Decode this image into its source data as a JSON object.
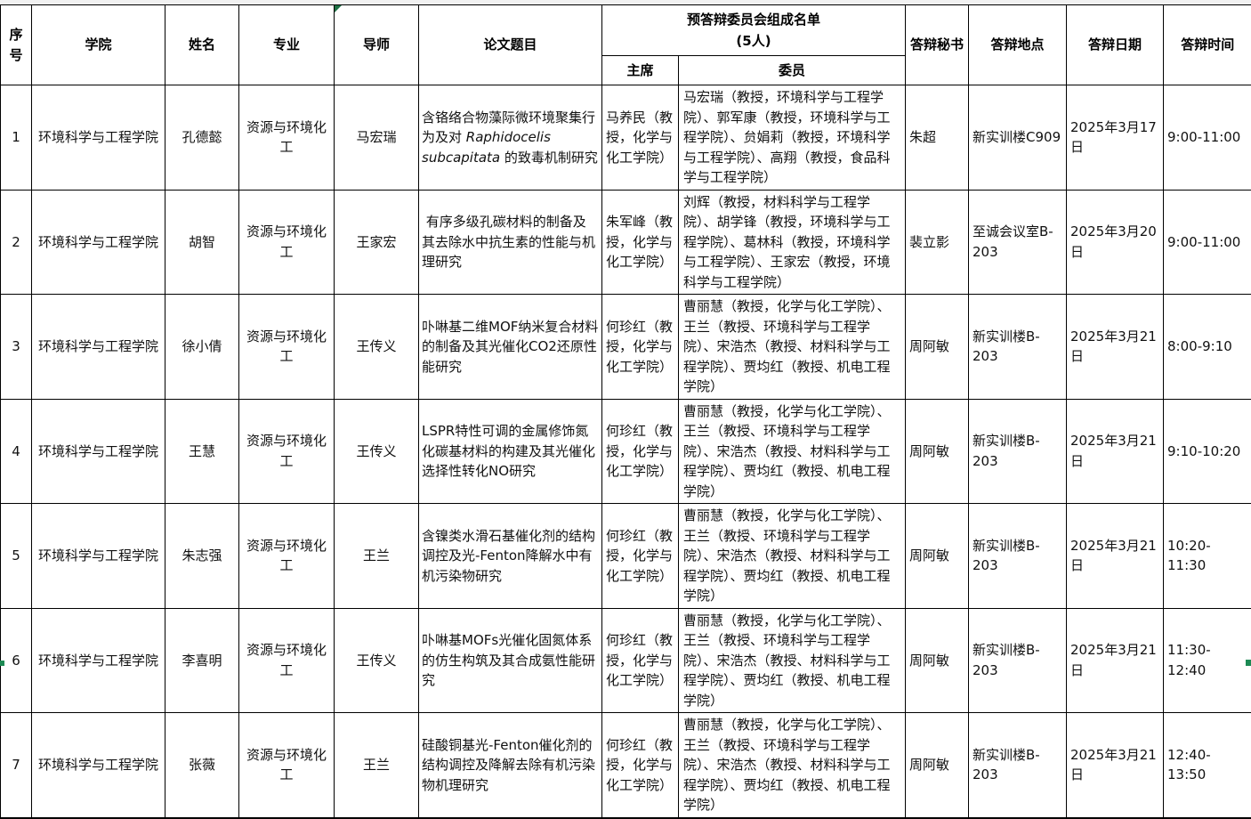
{
  "table": {
    "headers": {
      "index": "序号",
      "college": "学院",
      "name": "姓名",
      "major": "专业",
      "advisor": "导师",
      "thesis": "论文题目",
      "committee_line1": "预答辩委员会组成名单",
      "committee_line2": "(5人)",
      "chair": "主席",
      "members": "委员",
      "secretary": "答辩秘书",
      "location": "答辩地点",
      "date": "答辩日期",
      "time": "答辩时间"
    },
    "rows": [
      {
        "no": "1",
        "college": "环境科学与工程学院",
        "name": "孔德懿",
        "major": "资源与环境化工",
        "advisor": "马宏瑞",
        "thesis_parts": [
          {
            "t": "含铬络合物藻际微环境聚集行为及对 "
          },
          {
            "t": "Raphidocelis subcapitata",
            "i": true
          },
          {
            "t": " 的致毒机制研究"
          }
        ],
        "chair": "马养民（教授，化学与化工学院）",
        "members": "马宏瑞（教授，环境科学与工程学院）、郭军康（教授，环境科学与工程学院）、贠娟莉（教授，环境科学与工程学院）、高翔（教授，食品科学与工程学院）",
        "secretary": "朱超",
        "location": "新实训楼C909",
        "date": "2025年3月17日",
        "time": "9:00-11:00"
      },
      {
        "no": "2",
        "college": "环境科学与工程学院",
        "name": "胡智",
        "major": "资源与环境化工",
        "advisor": "王家宏",
        "thesis_parts": [
          {
            "t": " 有序多级孔碳材料的制备及其去除水中抗生素的性能与机理研究"
          }
        ],
        "chair": "朱军峰（教授，化学与化工学院）",
        "members": "刘辉（教授，材料科学与工程学院）、胡学锋（教授，环境科学与工程学院）、葛林科（教授，环境科学与工程学院）、王家宏（教授，环境科学与工程学院）",
        "secretary": "裴立影",
        "location": "至诚会议室B-203",
        "date": "2025年3月20日",
        "time": "9:00-11:00"
      },
      {
        "no": "3",
        "college": "环境科学与工程学院",
        "name": "徐小倩",
        "major": "资源与环境化工",
        "advisor": "王传义",
        "thesis_parts": [
          {
            "t": "卟啉基二维MOF纳米复合材料的制备及其光催化CO2还原性能研究"
          }
        ],
        "chair": "何珍红（教授，化学与化工学院）",
        "members": "曹丽慧（教授，化学与化工学院）、王兰（教授、环境科学与工程学院）、宋浩杰（教授、材料科学与工程学院）、贾均红（教授、机电工程学院）",
        "secretary": "周阿敏",
        "location": "新实训楼B-203",
        "date": "2025年3月21日",
        "time": "8:00-9:10"
      },
      {
        "no": "4",
        "college": "环境科学与工程学院",
        "name": "王慧",
        "major": "资源与环境化工",
        "advisor": "王传义",
        "thesis_parts": [
          {
            "t": "LSPR特性可调的金属修饰氮化碳基材料的构建及其光催化选择性转化NO研究"
          }
        ],
        "chair": "何珍红（教授，化学与化工学院）",
        "members": "曹丽慧（教授，化学与化工学院）、王兰（教授、环境科学与工程学院）、宋浩杰（教授、材料科学与工程学院）、贾均红（教授、机电工程学院）",
        "secretary": "周阿敏",
        "location": "新实训楼B-203",
        "date": "2025年3月21日",
        "time": "9:10-10:20"
      },
      {
        "no": "5",
        "college": "环境科学与工程学院",
        "name": "朱志强",
        "major": "资源与环境化工",
        "advisor": "王兰",
        "thesis_parts": [
          {
            "t": "含镍类水滑石基催化剂的结构调控及光-Fenton降解水中有机污染物研究"
          }
        ],
        "chair": "何珍红（教授，化学与化工学院）",
        "members": "曹丽慧（教授，化学与化工学院）、王兰（教授、环境科学与工程学院）、宋浩杰（教授、材料科学与工程学院）、贾均红（教授、机电工程学院）",
        "secretary": "周阿敏",
        "location": "新实训楼B-203",
        "date": "2025年3月21日",
        "time": "10:20-11:30"
      },
      {
        "no": "6",
        "college": "环境科学与工程学院",
        "name": "李喜明",
        "major": "资源与环境化工",
        "advisor": "王传义",
        "thesis_parts": [
          {
            "t": "卟啉基MOFs光催化固氮体系的仿生构筑及其合成氨性能研究"
          }
        ],
        "chair": "何珍红（教授，化学与化工学院）",
        "members": "曹丽慧（教授，化学与化工学院）、王兰（教授、环境科学与工程学院）、宋浩杰（教授、材料科学与工程学院）、贾均红（教授、机电工程学院）",
        "secretary": "周阿敏",
        "location": "新实训楼B-203",
        "date": "2025年3月21日",
        "time": "11:30-12:40"
      },
      {
        "no": "7",
        "college": "环境科学与工程学院",
        "name": "张薇",
        "major": "资源与环境化工",
        "advisor": "王兰",
        "thesis_parts": [
          {
            "t": "硅酸铜基光-Fenton催化剂的结构调控及降解去除有机污染物机理研究"
          }
        ],
        "chair": "何珍红（教授，化学与化工学院）",
        "members": "曹丽慧（教授，化学与化工学院）、王兰（教授、环境科学与工程学院）、宋浩杰（教授、材料科学与工程学院）、贾均红（教授、机电工程学院）",
        "secretary": "周阿敏",
        "location": "新实训楼B-203",
        "date": "2025年3月21日",
        "time": "12:40-13:50"
      }
    ]
  },
  "accents": {
    "selection_green": "#1d8a54",
    "flag_green": "#1d7044",
    "border_black": "#000000"
  }
}
